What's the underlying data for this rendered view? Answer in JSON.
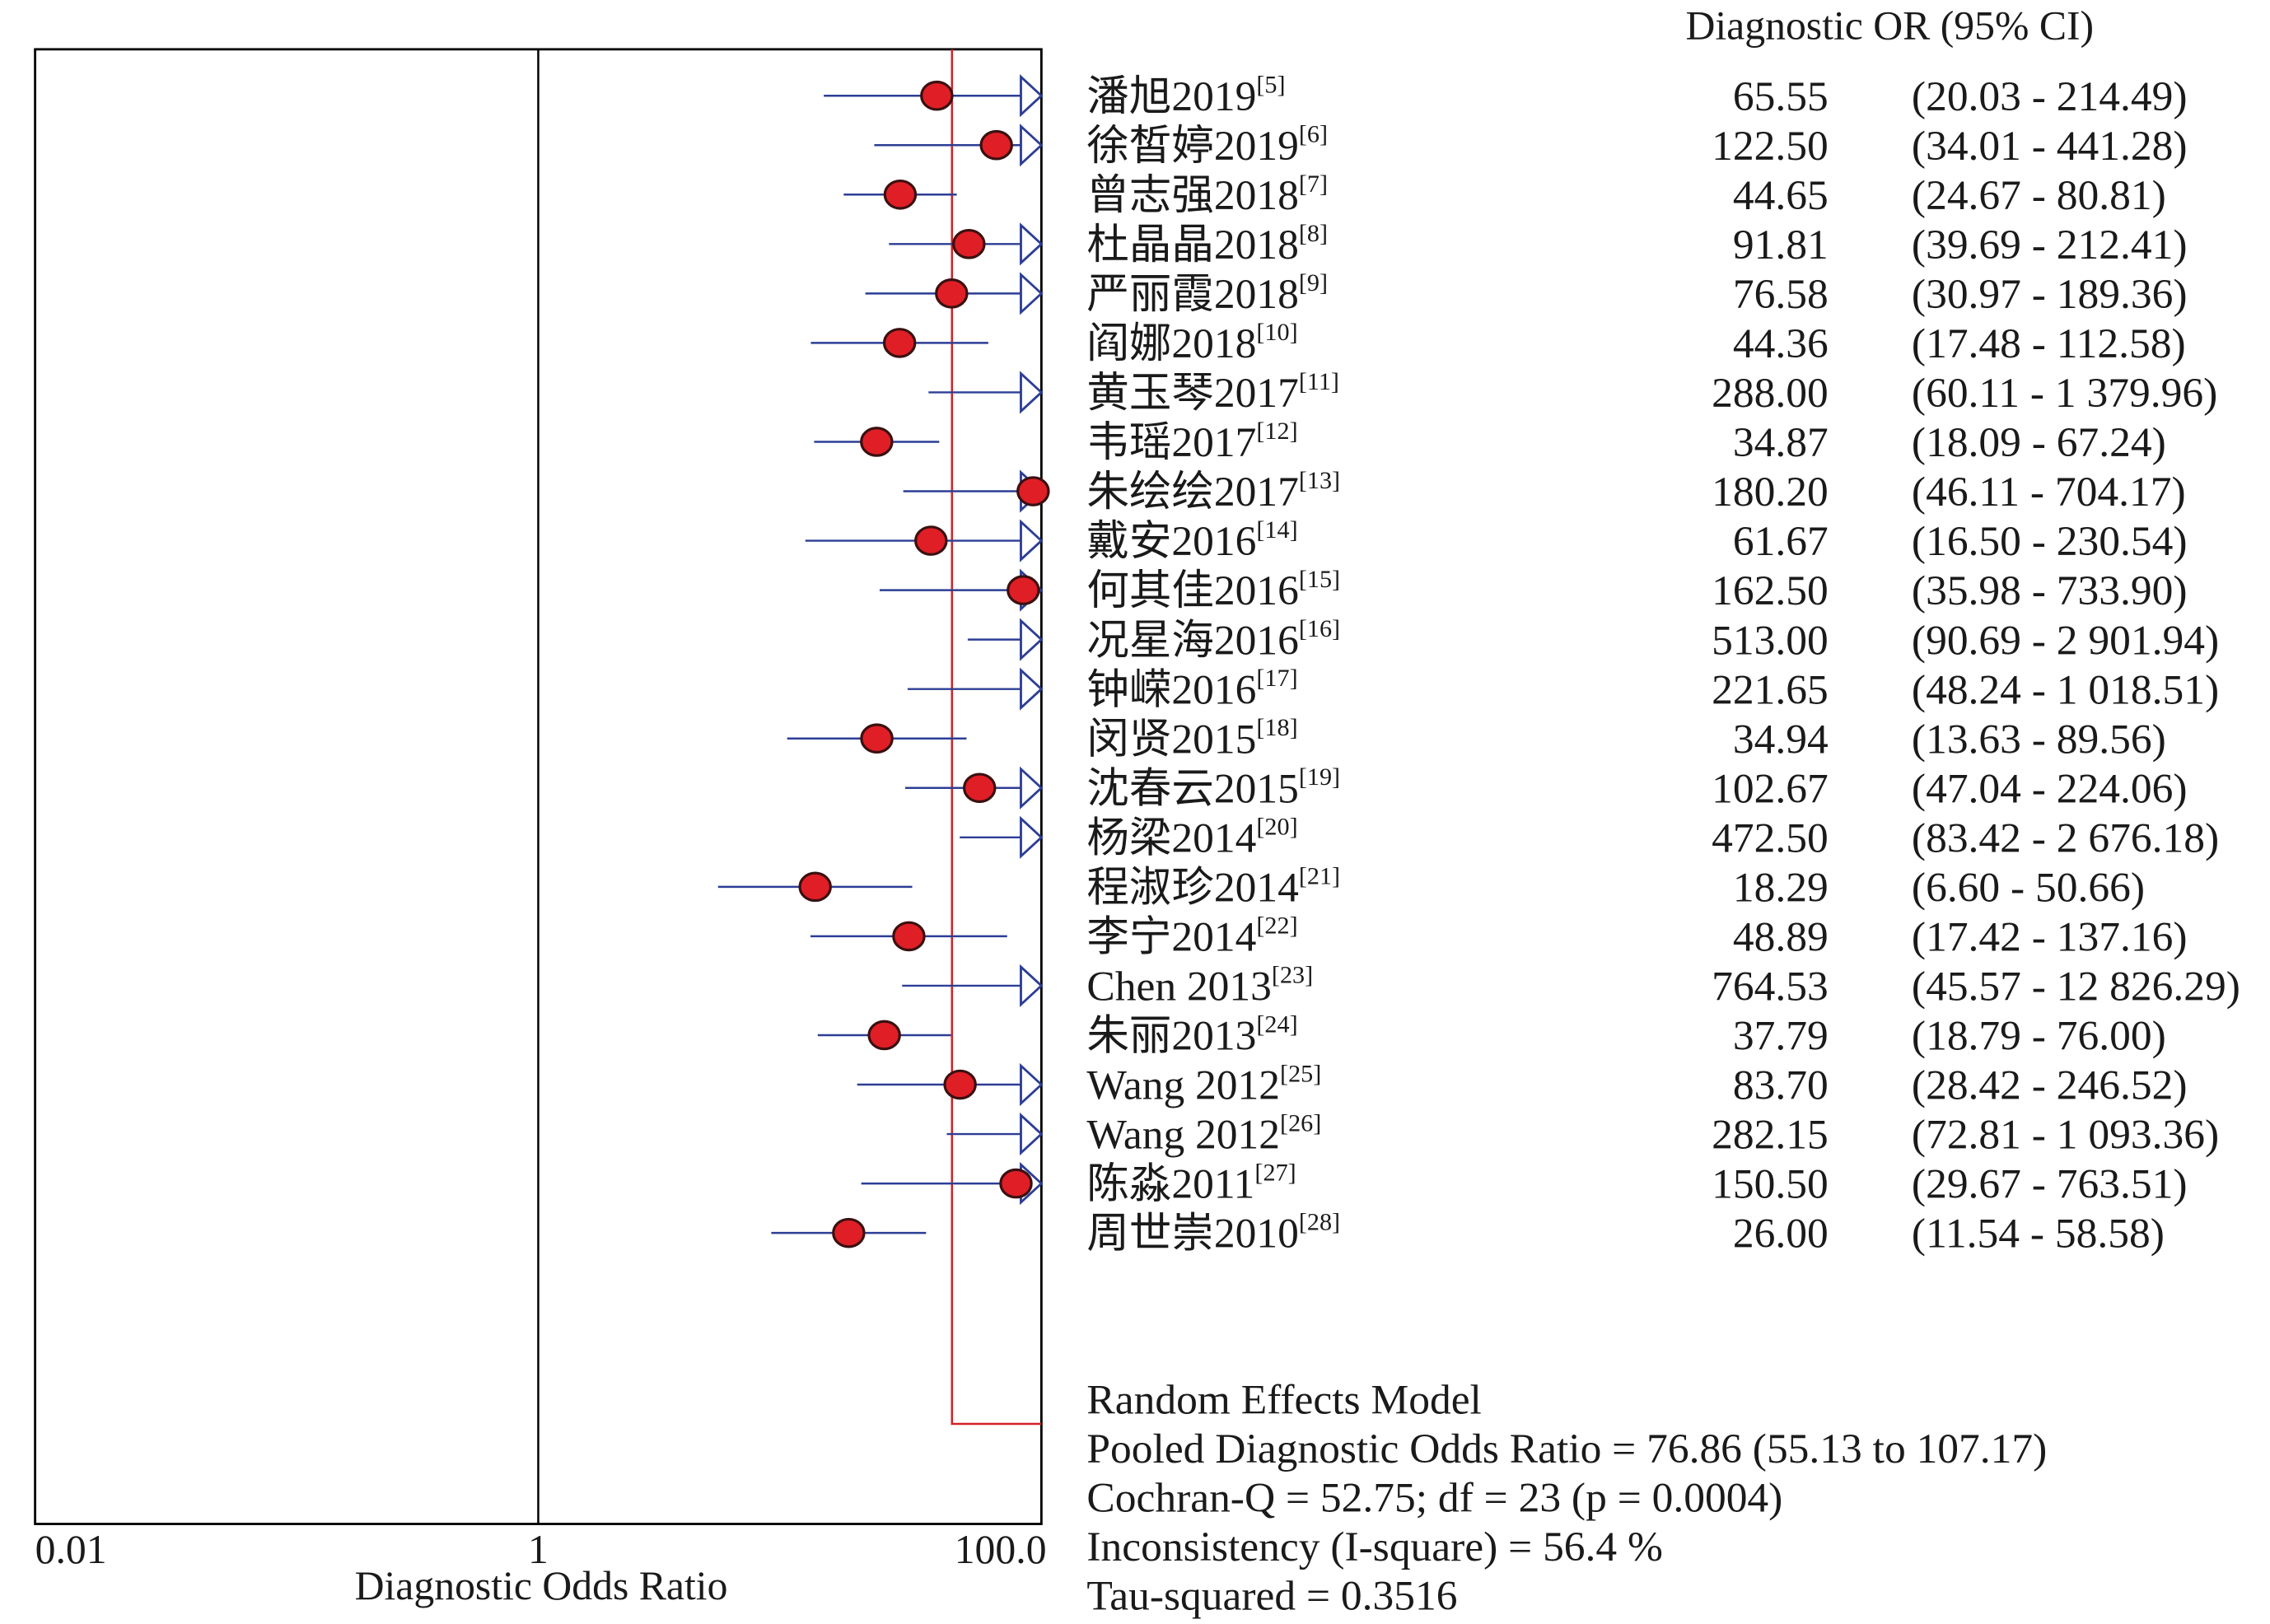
{
  "chart_data": {
    "type": "forest",
    "column_header": "Diagnostic OR (95% CI)",
    "xlabel": "Diagnostic Odds Ratio",
    "xscale": "log",
    "xlim": [
      0.01,
      200
    ],
    "x_ticks": [
      {
        "value": 0.01,
        "label": "0.01"
      },
      {
        "value": 1,
        "label": "1"
      },
      {
        "value": 100,
        "label": "100.0"
      }
    ],
    "reference_line": 1,
    "pooled_line": 76.86,
    "colors": {
      "ci_line": "#2c3e95",
      "point_fill": "#e01e26",
      "pooled_line": "#d42027",
      "axis": "#000000"
    },
    "studies": [
      {
        "label": "潘旭2019",
        "ref": "[5]",
        "or": 65.55,
        "or_text": "65.55",
        "ci_text": "(20.03 - 214.49)",
        "lo": 20.03,
        "hi": 214.49
      },
      {
        "label": "徐皙婷2019",
        "ref": "[6]",
        "or": 122.5,
        "or_text": "122.50",
        "ci_text": "(34.01 - 441.28)",
        "lo": 34.01,
        "hi": 441.28
      },
      {
        "label": "曾志强2018",
        "ref": "[7]",
        "or": 44.65,
        "or_text": "44.65",
        "ci_text": "(24.67 - 80.81)",
        "lo": 24.67,
        "hi": 80.81
      },
      {
        "label": "杜晶晶2018",
        "ref": "[8]",
        "or": 91.81,
        "or_text": "91.81",
        "ci_text": "(39.69 - 212.41)",
        "lo": 39.69,
        "hi": 212.41
      },
      {
        "label": "严丽霞2018",
        "ref": "[9]",
        "or": 76.58,
        "or_text": "76.58",
        "ci_text": "(30.97 - 189.36)",
        "lo": 30.97,
        "hi": 189.36
      },
      {
        "label": "阎娜2018",
        "ref": "[10]",
        "or": 44.36,
        "or_text": "44.36",
        "ci_text": "(17.48 - 112.58)",
        "lo": 17.48,
        "hi": 112.58
      },
      {
        "label": "黄玉琴2017",
        "ref": "[11]",
        "or": 288.0,
        "or_text": "288.00",
        "ci_text": "(60.11 - 1 379.96)",
        "lo": 60.11,
        "hi": 1379.96
      },
      {
        "label": "韦瑶2017",
        "ref": "[12]",
        "or": 34.87,
        "or_text": "34.87",
        "ci_text": "(18.09 - 67.24)",
        "lo": 18.09,
        "hi": 67.24
      },
      {
        "label": "朱绘绘2017",
        "ref": "[13]",
        "or": 180.2,
        "or_text": "180.20",
        "ci_text": "(46.11 - 704.17)",
        "lo": 46.11,
        "hi": 704.17
      },
      {
        "label": "戴安2016",
        "ref": "[14]",
        "or": 61.67,
        "or_text": "61.67",
        "ci_text": "(16.50 - 230.54)",
        "lo": 16.5,
        "hi": 230.54
      },
      {
        "label": "何其佳2016",
        "ref": "[15]",
        "or": 162.5,
        "or_text": "162.50",
        "ci_text": "(35.98 - 733.90)",
        "lo": 35.98,
        "hi": 733.9
      },
      {
        "label": "况星海2016",
        "ref": "[16]",
        "or": 513.0,
        "or_text": "513.00",
        "ci_text": "(90.69 - 2 901.94)",
        "lo": 90.69,
        "hi": 2901.94
      },
      {
        "label": "钟嵘2016",
        "ref": "[17]",
        "or": 221.65,
        "or_text": "221.65",
        "ci_text": "(48.24 - 1 018.51)",
        "lo": 48.24,
        "hi": 1018.51
      },
      {
        "label": "闵贤2015",
        "ref": "[18]",
        "or": 34.94,
        "or_text": "34.94",
        "ci_text": "(13.63 - 89.56)",
        "lo": 13.63,
        "hi": 89.56
      },
      {
        "label": "沈春云2015",
        "ref": "[19]",
        "or": 102.67,
        "or_text": "102.67",
        "ci_text": "(47.04 - 224.06)",
        "lo": 47.04,
        "hi": 224.06
      },
      {
        "label": "杨梁2014",
        "ref": "[20]",
        "or": 472.5,
        "or_text": "472.50",
        "ci_text": "(83.42 - 2 676.18)",
        "lo": 83.42,
        "hi": 2676.18
      },
      {
        "label": "程淑珍2014",
        "ref": "[21]",
        "or": 18.29,
        "or_text": "18.29",
        "ci_text": "(6.60 - 50.66)",
        "lo": 6.6,
        "hi": 50.66
      },
      {
        "label": "李宁2014",
        "ref": "[22]",
        "or": 48.89,
        "or_text": "48.89",
        "ci_text": "(17.42 - 137.16)",
        "lo": 17.42,
        "hi": 137.16
      },
      {
        "label": "Chen 2013",
        "ref": "[23]",
        "or": 764.53,
        "or_text": "764.53",
        "ci_text": "(45.57 - 12 826.29)",
        "lo": 45.57,
        "hi": 12826.29
      },
      {
        "label": "朱丽2013",
        "ref": "[24]",
        "or": 37.79,
        "or_text": "37.79",
        "ci_text": "(18.79 - 76.00)",
        "lo": 18.79,
        "hi": 76.0
      },
      {
        "label": "Wang 2012",
        "ref": "[25]",
        "or": 83.7,
        "or_text": "83.70",
        "ci_text": "(28.42 - 246.52)",
        "lo": 28.42,
        "hi": 246.52
      },
      {
        "label": "Wang 2012",
        "ref": "[26]",
        "or": 282.15,
        "or_text": "282.15",
        "ci_text": "(72.81 - 1 093.36)",
        "lo": 72.81,
        "hi": 1093.36
      },
      {
        "label": "陈淼2011",
        "ref": "[27]",
        "or": 150.5,
        "or_text": "150.50",
        "ci_text": "(29.67 - 763.51)",
        "lo": 29.67,
        "hi": 763.51
      },
      {
        "label": "周世崇2010",
        "ref": "[28]",
        "or": 26.0,
        "or_text": "26.00",
        "ci_text": "(11.54 - 58.58)",
        "lo": 11.54,
        "hi": 58.58
      }
    ],
    "summary": [
      "Random Effects Model",
      "Pooled Diagnostic Odds Ratio = 76.86 (55.13 to 107.17)",
      "Cochran-Q = 52.75; df =  23 (p = 0.0004)",
      "Inconsistency (I-square) = 56.4 %",
      "Tau-squared = 0.3516"
    ]
  }
}
